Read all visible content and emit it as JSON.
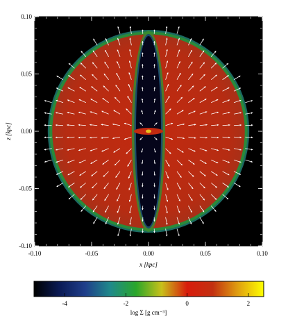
{
  "chart_data": {
    "type": "heatmap",
    "xlabel": "x [kpc]",
    "ylabel": "z [kpc]",
    "xlim": [
      -0.1,
      0.1
    ],
    "ylim": [
      -0.1,
      0.1
    ],
    "x_ticks": [
      "-0.10",
      "-0.05",
      "0.00",
      "0.05",
      "0.10"
    ],
    "y_ticks": [
      "-0.10",
      "-0.05",
      "0.00",
      "0.05",
      "0.10"
    ],
    "x_tick_values": [
      -0.1,
      -0.05,
      0.0,
      0.05,
      0.1
    ],
    "y_tick_values": [
      -0.1,
      -0.05,
      0.0,
      0.05,
      0.1
    ],
    "field": {
      "bubble_radius": 0.087,
      "cavity_half_width": 0.011,
      "cavity_half_height": 0.083,
      "background_value": -5,
      "interior_value": -0.7,
      "shell_value": -2
    },
    "vectors": "velocity field, radially outward",
    "colorbar": {
      "label": "log Σ [g cm⁻³]",
      "vmin": -5,
      "vmax": 2.5,
      "ticks": [
        "-4",
        "-2",
        "0",
        "2"
      ],
      "tick_values": [
        -4,
        -2,
        0,
        2
      ],
      "colormap": [
        "#000000",
        "#0a1a55",
        "#1f3e8a",
        "#1f8a8a",
        "#2aa62a",
        "#c8c01a",
        "#d81c0c",
        "#c23010",
        "#e0a010",
        "#ffff00"
      ]
    },
    "colors": {
      "background": "#000000",
      "interior": "#b52b12",
      "shell": "#2a8a3a",
      "cavity": "#05051a",
      "vectors": "#ffffff"
    }
  }
}
